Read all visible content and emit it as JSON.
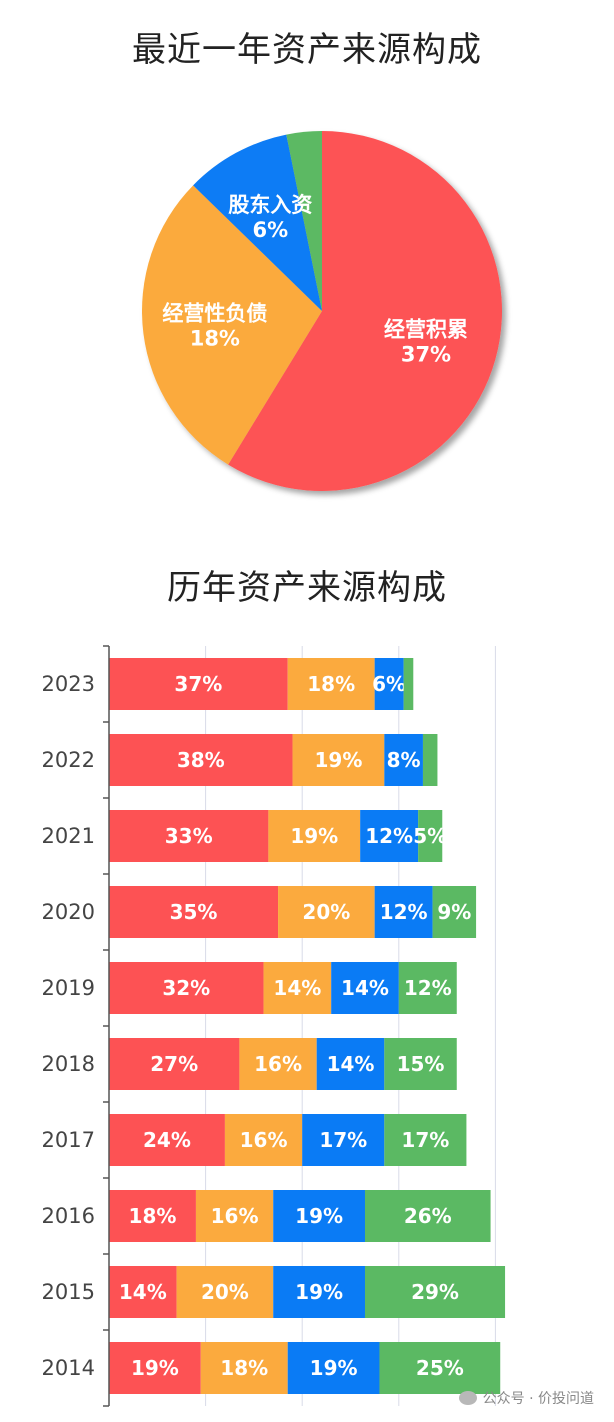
{
  "colors": {
    "red": "#fd5254",
    "orange": "#fbaa3e",
    "blue": "#0a7bf5",
    "green": "#5bb963"
  },
  "chart_data": [
    {
      "type": "pie",
      "title": "最近一年资产来源构成",
      "slices": [
        {
          "label": "经营积累",
          "pct_label": "37%",
          "value": 37,
          "color": "#fd5254"
        },
        {
          "label": "经营性负债",
          "pct_label": "18%",
          "value": 18,
          "color": "#fbaa3e"
        },
        {
          "label": "股东入资",
          "pct_label": "6%",
          "value": 6,
          "color": "#0a7bf5"
        },
        {
          "label": "",
          "pct_label": "",
          "value": 2,
          "color": "#5bb963"
        }
      ]
    },
    {
      "type": "bar",
      "orientation": "horizontal",
      "stacked": true,
      "title": "历年资产来源构成",
      "categories": [
        "2023",
        "2022",
        "2021",
        "2020",
        "2019",
        "2018",
        "2017",
        "2016",
        "2015",
        "2014"
      ],
      "series": [
        {
          "color": "#fd5254",
          "values": [
            37,
            38,
            33,
            35,
            32,
            27,
            24,
            18,
            14,
            19
          ]
        },
        {
          "color": "#fbaa3e",
          "values": [
            18,
            19,
            19,
            20,
            14,
            16,
            16,
            16,
            20,
            18
          ]
        },
        {
          "color": "#0a7bf5",
          "values": [
            6,
            8,
            12,
            12,
            14,
            14,
            17,
            19,
            19,
            19
          ]
        },
        {
          "color": "#5bb963",
          "values": [
            2,
            3,
            5,
            9,
            12,
            15,
            17,
            26,
            29,
            25
          ]
        }
      ],
      "grid": true
    }
  ],
  "watermark": "公众号 · 价投问道"
}
